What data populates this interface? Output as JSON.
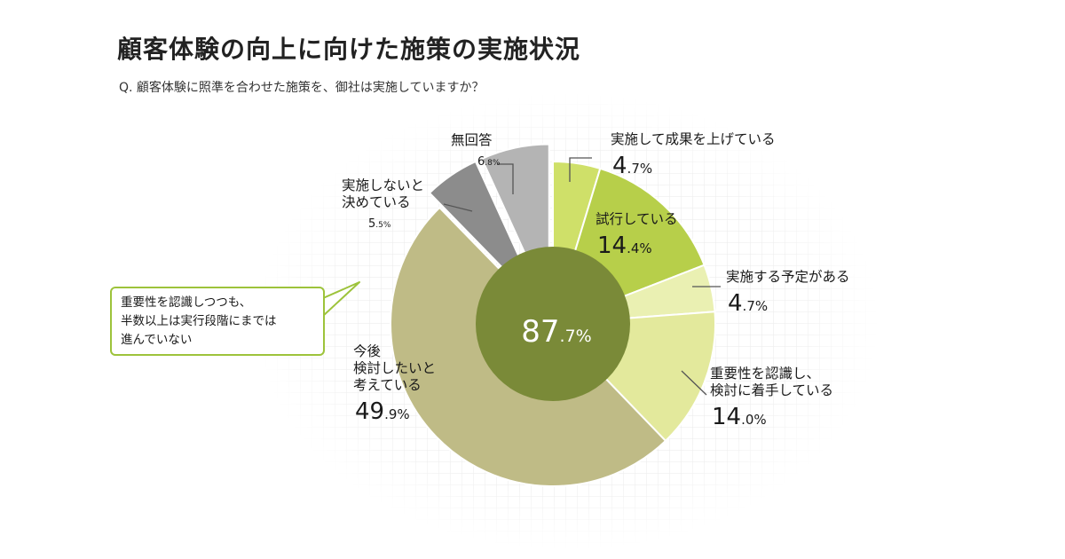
{
  "page": {
    "title": "顧客体験の向上に向けた施策の実施状況",
    "question": "Q. 顧客体験に照準を合わせた施策を、御社は実施していますか？"
  },
  "colors": {
    "background_grid": "#ececec",
    "inner_ring": "#7a8a38",
    "callout_border": "#9dc33b",
    "leader": "#555555"
  },
  "chart_data": {
    "type": "pie",
    "subtype": "exploded pie with inner summary disc",
    "slices": [
      {
        "label_lines": [
          "実施して成果を上げている"
        ],
        "value": 4.7,
        "color": "#cfe069",
        "exploded": false
      },
      {
        "label_lines": [
          "試行している"
        ],
        "value": 14.4,
        "color": "#b7cf4a",
        "exploded": false
      },
      {
        "label_lines": [
          "実施する予定がある"
        ],
        "value": 4.7,
        "color": "#eaf0b2",
        "exploded": false
      },
      {
        "label_lines": [
          "重要性を認識し、",
          "検討に着手している"
        ],
        "value": 14.0,
        "color": "#e3e99c",
        "exploded": false
      },
      {
        "label_lines": [
          "今後",
          "検討したいと",
          "考えている"
        ],
        "value": 49.9,
        "color": "#bfbb86",
        "exploded": false
      },
      {
        "label_lines": [
          "実施しないと",
          "決めている"
        ],
        "value": 5.5,
        "color": "#8c8c8c",
        "exploded": true
      },
      {
        "label_lines": [
          "無回答"
        ],
        "value": 6.8,
        "color": "#b4b4b4",
        "exploded": true
      }
    ],
    "inner_summary": {
      "value": 87.7,
      "color": "#7a8a38"
    },
    "callout_lines": [
      "重要性を認識しつつも、",
      "半数以上は実行段階にまでは",
      "進んでいない"
    ],
    "unit": "%"
  }
}
